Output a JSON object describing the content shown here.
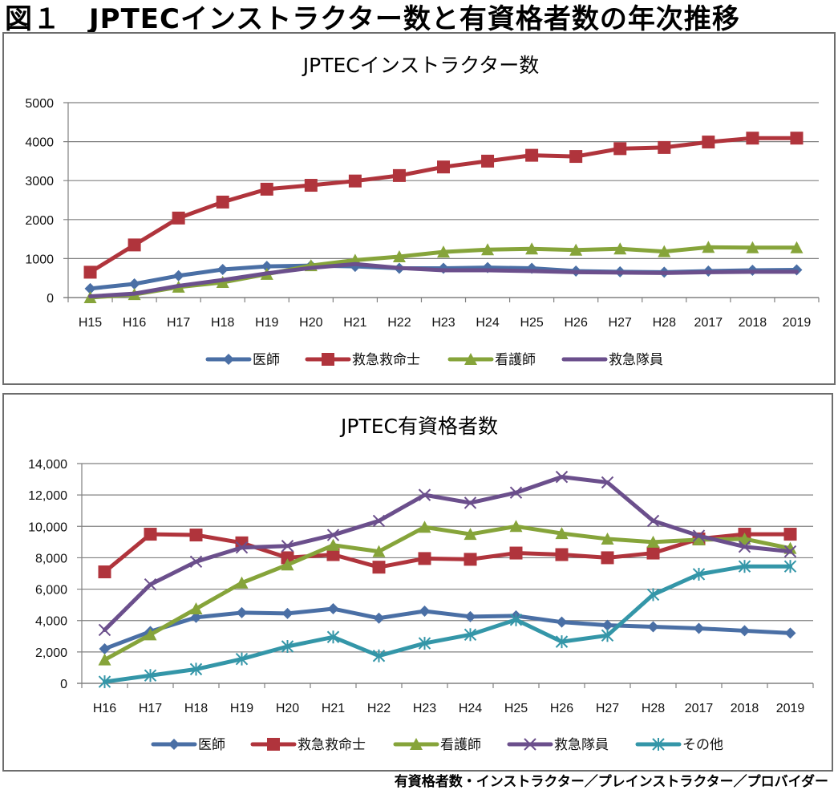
{
  "figure": {
    "title": "図１　JPTECインストラクター数と有資格者数の年次推移",
    "footnote": "有資格者数・インストラクター／プレインストラクター／プロバイダー"
  },
  "colors": {
    "医師": "#4a6fa5",
    "救急救命士": "#b0343c",
    "看護師": "#86a43a",
    "救急隊員": "#6b4f8c",
    "その他": "#3496a8",
    "grid": "#808080",
    "axis": "#808080"
  },
  "chart_data": [
    {
      "type": "line",
      "title": "JPTECインストラクター数",
      "xlabel": "",
      "ylabel": "",
      "ylim": [
        0,
        5000
      ],
      "yticks": [
        0,
        1000,
        2000,
        3000,
        4000,
        5000
      ],
      "ytick_labels": [
        "0",
        "1000",
        "2000",
        "3000",
        "4000",
        "5000"
      ],
      "grid": true,
      "legend_position": "bottom",
      "categories": [
        "H15",
        "H16",
        "H17",
        "H18",
        "H19",
        "H20",
        "H21",
        "H22",
        "H23",
        "H24",
        "H25",
        "H26",
        "H27",
        "H28",
        "2017",
        "2018",
        "2019"
      ],
      "series": [
        {
          "name": "医師",
          "marker": "diamond",
          "values": [
            230,
            350,
            560,
            720,
            800,
            820,
            800,
            750,
            750,
            770,
            750,
            680,
            660,
            650,
            680,
            700,
            710
          ]
        },
        {
          "name": "救急救命士",
          "marker": "square",
          "values": [
            650,
            1350,
            2040,
            2450,
            2780,
            2880,
            2990,
            3130,
            3350,
            3500,
            3650,
            3620,
            3820,
            3850,
            3990,
            4090,
            4090
          ]
        },
        {
          "name": "看護師",
          "marker": "triangle",
          "values": [
            0,
            80,
            270,
            390,
            600,
            820,
            960,
            1050,
            1170,
            1230,
            1250,
            1220,
            1250,
            1180,
            1290,
            1280,
            1280
          ]
        },
        {
          "name": "救急隊員",
          "marker": "none",
          "values": [
            30,
            100,
            300,
            450,
            620,
            760,
            860,
            760,
            700,
            700,
            680,
            650,
            640,
            630,
            650,
            660,
            660
          ]
        }
      ]
    },
    {
      "type": "line",
      "title": "JPTEC有資格者数",
      "xlabel": "",
      "ylabel": "",
      "ylim": [
        0,
        14000
      ],
      "yticks": [
        0,
        2000,
        4000,
        6000,
        8000,
        10000,
        12000,
        14000
      ],
      "ytick_labels": [
        "0",
        "2,000",
        "4,000",
        "6,000",
        "8,000",
        "10,000",
        "12,000",
        "14,000"
      ],
      "grid": true,
      "legend_position": "bottom",
      "categories": [
        "H16",
        "H17",
        "H18",
        "H19",
        "H20",
        "H21",
        "H22",
        "H23",
        "H24",
        "H25",
        "H26",
        "H27",
        "H28",
        "2017",
        "2018",
        "2019"
      ],
      "series": [
        {
          "name": "医師",
          "marker": "diamond",
          "values": [
            2200,
            3300,
            4200,
            4500,
            4450,
            4750,
            4150,
            4600,
            4250,
            4300,
            3900,
            3700,
            3600,
            3500,
            3350,
            3200
          ]
        },
        {
          "name": "救急救命士",
          "marker": "square",
          "values": [
            7100,
            9500,
            9450,
            8950,
            8000,
            8200,
            7400,
            7950,
            7900,
            8300,
            8200,
            8000,
            8300,
            9200,
            9500,
            9500
          ]
        },
        {
          "name": "看護師",
          "marker": "triangle",
          "values": [
            1500,
            3100,
            4750,
            6400,
            7550,
            8800,
            8400,
            9950,
            9500,
            10000,
            9550,
            9200,
            9000,
            9150,
            9200,
            8600
          ]
        },
        {
          "name": "救急隊員",
          "marker": "x",
          "values": [
            3400,
            6300,
            7750,
            8650,
            8750,
            9450,
            10350,
            12000,
            11500,
            12150,
            13150,
            12800,
            10350,
            9400,
            8700,
            8400
          ]
        },
        {
          "name": "その他",
          "marker": "star",
          "values": [
            100,
            500,
            900,
            1550,
            2350,
            2950,
            1750,
            2550,
            3100,
            4050,
            2650,
            3050,
            5650,
            6950,
            7450,
            7450
          ]
        }
      ]
    }
  ]
}
